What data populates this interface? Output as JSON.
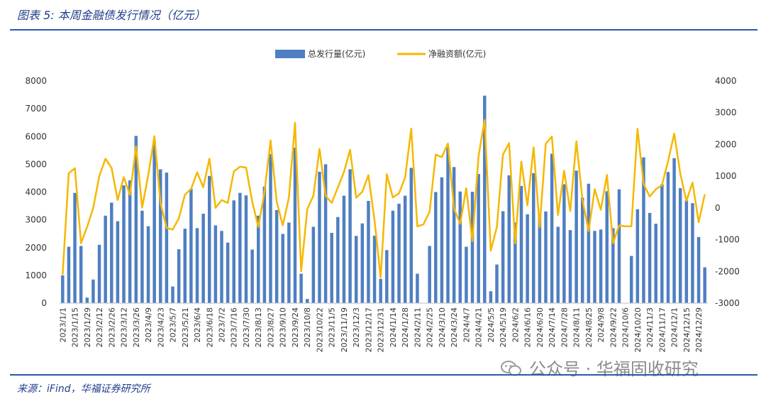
{
  "header": {
    "title": "图表 5:  本周金融债发行情况（亿元）"
  },
  "footer": {
    "source": "来源：iFind，华福证券研究所"
  },
  "watermark": {
    "text": "公众号 · 华福固收研究",
    "icon": "wechat-icon"
  },
  "colors": {
    "bar": "#4f7fc2",
    "line": "#f5b800",
    "rule": "#2f57b0",
    "title": "#1f3f8a"
  },
  "chart_data": {
    "type": "bar+line",
    "legend": {
      "placement": "top-center",
      "bar_label": "总发行量(亿元)",
      "line_label": "净融资额(亿元)"
    },
    "y_left": {
      "min": 0,
      "max": 8000,
      "ticks": [
        "0",
        "1000",
        "2000",
        "3000",
        "4000",
        "5000",
        "6000",
        "7000",
        "8000"
      ]
    },
    "y_right": {
      "min": -3000,
      "max": 4000,
      "ticks": [
        "-3000",
        "-2000",
        "-1000",
        "0",
        "1000",
        "2000",
        "3000",
        "4000"
      ]
    },
    "x_tick_labels": [
      "2023/1/1",
      "2023/1/15",
      "2023/1/29",
      "2023/2/12",
      "2023/2/26",
      "2023/3/12",
      "2023/3/26",
      "2023/4/9",
      "2023/4/23",
      "2023/5/7",
      "2023/5/21",
      "2023/6/4",
      "2023/6/18",
      "2023/7/2",
      "2023/7/16",
      "2023/7/30",
      "2023/8/13",
      "2023/8/27",
      "2023/9/10",
      "2023/9/24",
      "2023/10/8",
      "2023/10/22",
      "2023/11/5",
      "2023/11/19",
      "2023/12/3",
      "2023/12/17",
      "2023/12/31",
      "2024/1/14",
      "2024/1/28",
      "2024/2/11",
      "2024/2/25",
      "2024/3/10",
      "2024/3/24",
      "2024/4/7",
      "2024/4/21",
      "2024/5/5",
      "2024/5/19",
      "2024/6/2",
      "2024/6/16",
      "2024/6/30",
      "2024/7/14",
      "2024/7/28",
      "2024/8/11",
      "2024/8/25",
      "2024/9/8",
      "2024/9/22",
      "2024/10/6",
      "2024/10/20",
      "2024/11/3",
      "2024/11/17",
      "2024/12/1",
      "2024/12/15",
      "2024/12/29"
    ],
    "series": [
      {
        "name": "总发行量(亿元)",
        "type": "bar",
        "values": [
          1000,
          2030,
          3970,
          2060,
          200,
          850,
          2100,
          3150,
          3620,
          2950,
          4240,
          4420,
          6020,
          3330,
          2770,
          5800,
          4820,
          4700,
          600,
          1940,
          2680,
          4120,
          2700,
          3220,
          4580,
          2800,
          2600,
          2180,
          3700,
          3970,
          3880,
          1930,
          3150,
          4200,
          5370,
          3350,
          2490,
          2900,
          5600,
          1060,
          150,
          2750,
          4730,
          5000,
          2530,
          3100,
          3870,
          4820,
          2420,
          2870,
          3680,
          2430,
          870,
          1910,
          3330,
          3580,
          3870,
          4870,
          1060,
          0,
          2060,
          4000,
          4530,
          5600,
          4900,
          4020,
          2030,
          4010,
          4650,
          7470,
          430,
          1390,
          3310,
          4600,
          2900,
          4220,
          3200,
          4680,
          3080,
          3300,
          5380,
          2750,
          4280,
          2630,
          4770,
          3800,
          4300,
          2600,
          2650,
          4030,
          2700,
          4100,
          0,
          1700,
          3380,
          5250,
          3250,
          2860,
          4280,
          4720,
          5220,
          4140,
          3700,
          3600,
          2380,
          1290
        ]
      },
      {
        "name": "净融资额(亿元)",
        "type": "line",
        "values": [
          -2100,
          1090,
          1250,
          -1110,
          -600,
          0,
          1000,
          1550,
          1260,
          250,
          970,
          410,
          1940,
          10,
          1030,
          2260,
          150,
          -630,
          -680,
          -330,
          420,
          600,
          1120,
          650,
          1550,
          0,
          250,
          160,
          1150,
          1300,
          1270,
          200,
          -600,
          500,
          2130,
          200,
          -550,
          320,
          2680,
          -2000,
          -40,
          380,
          1860,
          380,
          160,
          640,
          1130,
          1830,
          320,
          510,
          1030,
          -400,
          -2200,
          1060,
          330,
          460,
          960,
          2500,
          -580,
          -520,
          -120,
          1680,
          1600,
          2030,
          -30,
          -500,
          620,
          -1050,
          1630,
          2770,
          -1350,
          -610,
          1680,
          2040,
          -1120,
          1460,
          80,
          1910,
          -600,
          2020,
          2250,
          -230,
          1170,
          -100,
          2100,
          260,
          -730,
          590,
          -60,
          1040,
          -1110,
          -550,
          -580,
          -580,
          2490,
          750,
          360,
          590,
          720,
          1480,
          2340,
          1080,
          220,
          800,
          -450,
          430
        ]
      }
    ]
  }
}
